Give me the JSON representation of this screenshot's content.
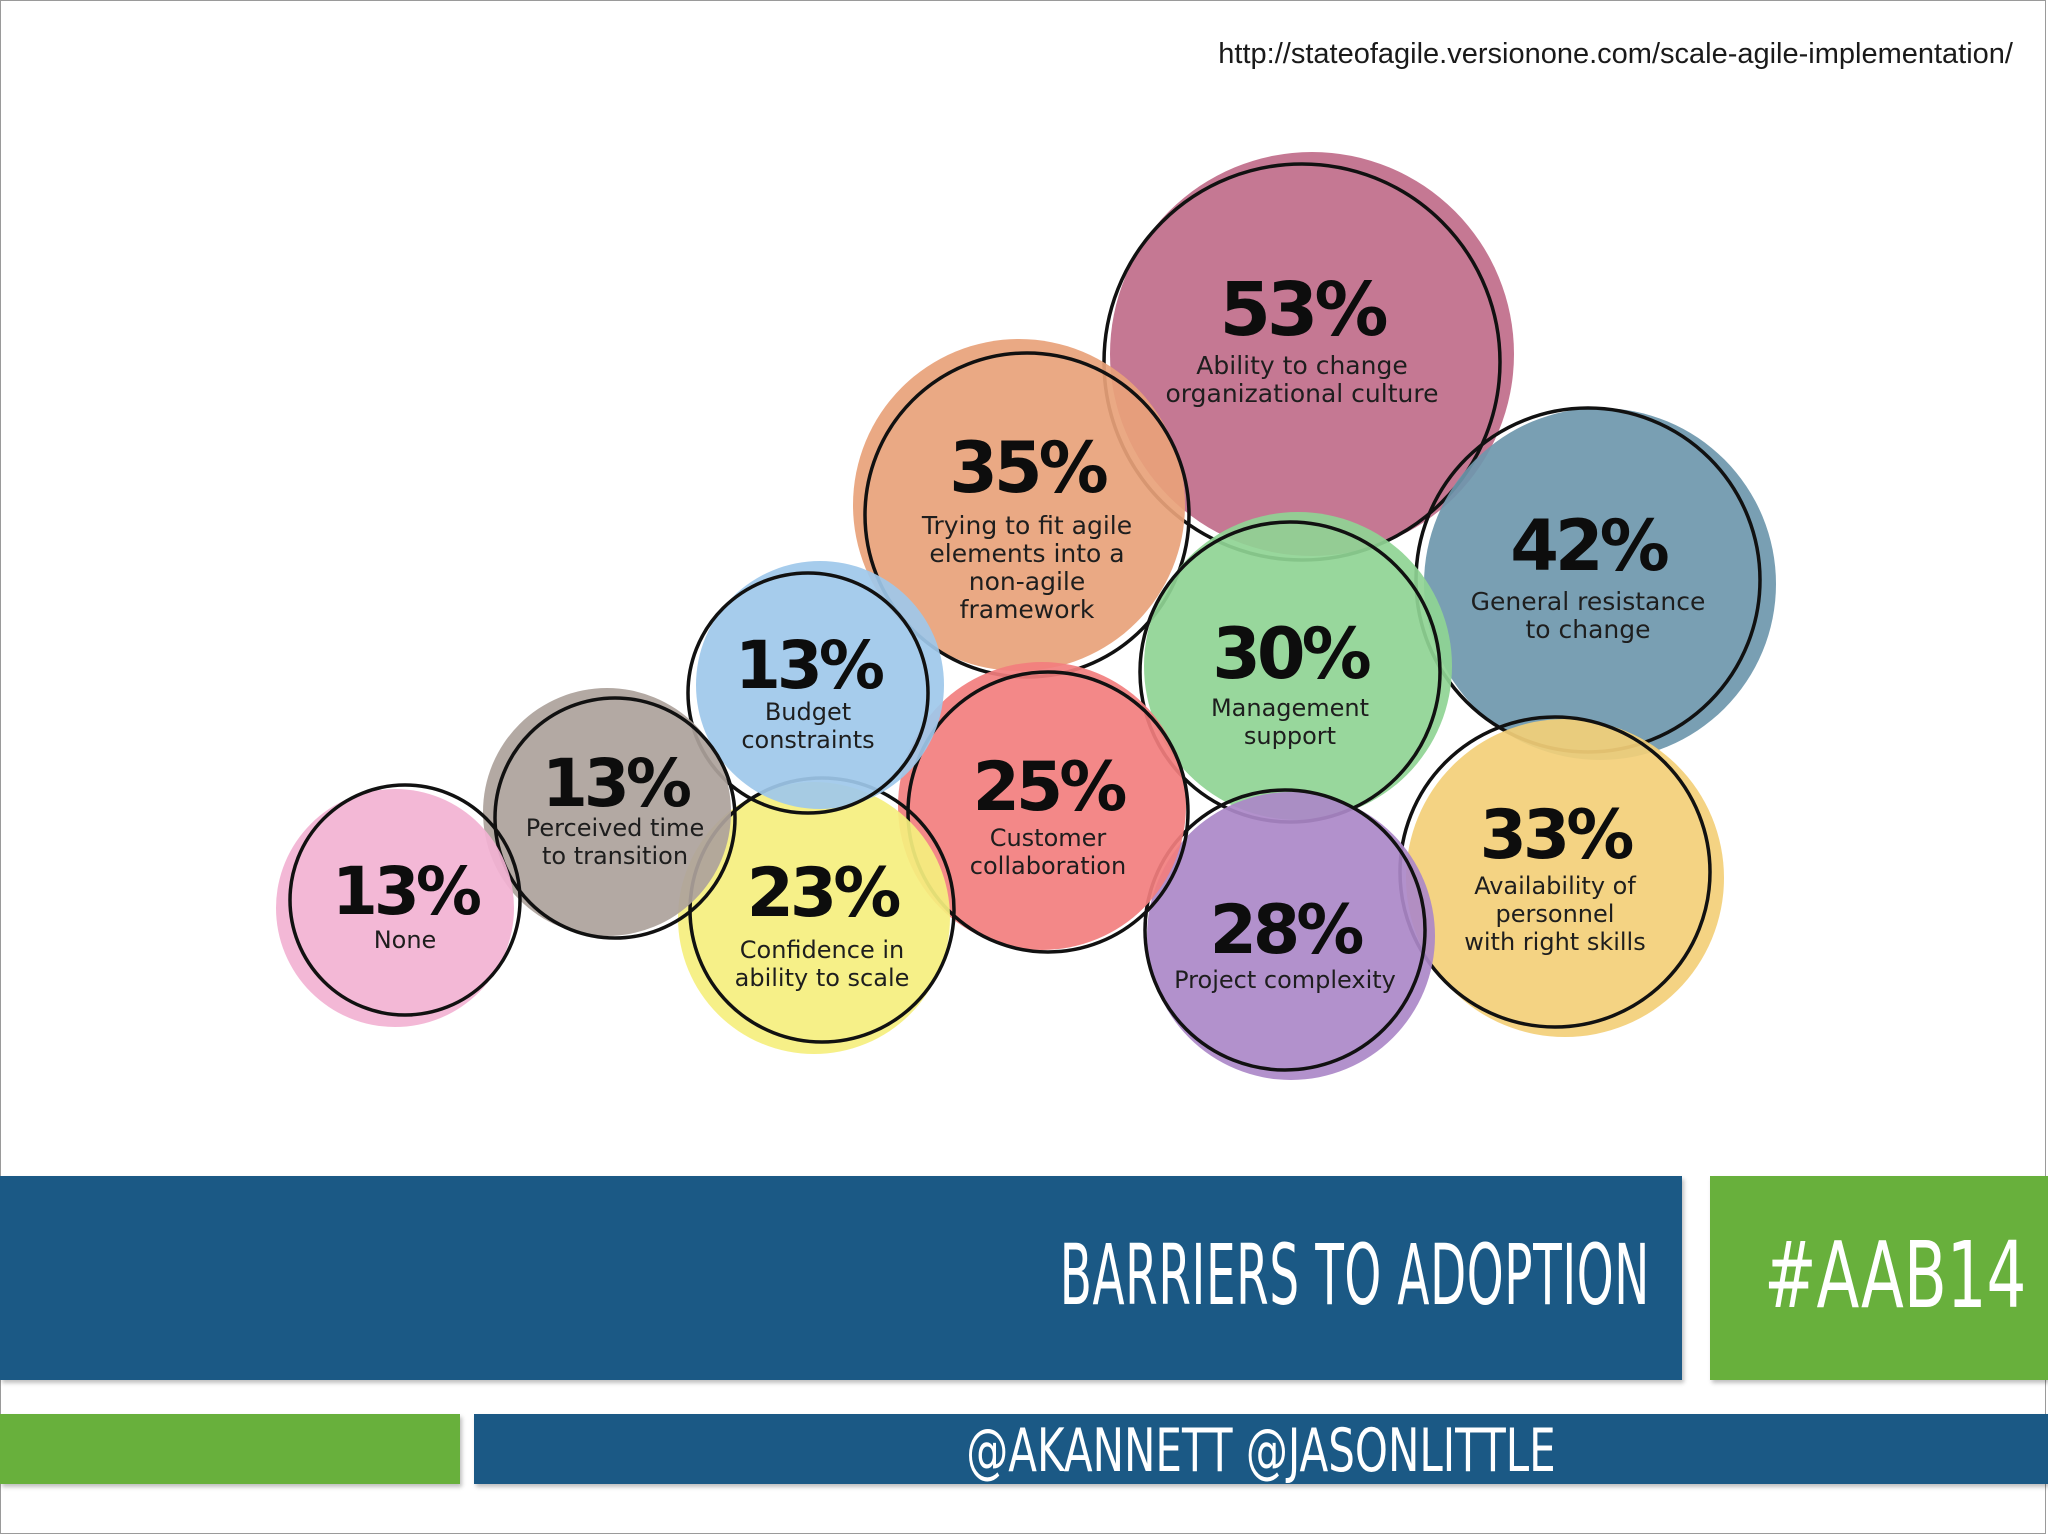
{
  "source_url": "http://stateofagile.versionone.com/scale-agile-implementation/",
  "slide_title": "BARRIERS TO ADOPTION",
  "hashtag": "#AAB14",
  "authors": "@AKANNETT @JASONLITTLE",
  "colors": {
    "title_bar": "#1b5985",
    "accent_green": "#68b03c"
  },
  "chart_data": {
    "type": "bubble",
    "title": "",
    "series": [
      {
        "value": 53,
        "label": "53%",
        "text": [
          "Ability to change",
          "organizational culture"
        ],
        "color": "#c06c8a"
      },
      {
        "value": 42,
        "label": "42%",
        "text": [
          "General resistance",
          "to change"
        ],
        "color": "#6e97ad"
      },
      {
        "value": 35,
        "label": "35%",
        "text": [
          "Trying to fit agile",
          "elements into a",
          "non-agile",
          "framework"
        ],
        "color": "#e8a27a"
      },
      {
        "value": 33,
        "label": "33%",
        "text": [
          "Availability of",
          "personnel",
          "with right skills"
        ],
        "color": "#f3cf78"
      },
      {
        "value": 30,
        "label": "30%",
        "text": [
          "Management",
          "support"
        ],
        "color": "#8fd494"
      },
      {
        "value": 28,
        "label": "28%",
        "text": [
          "Project complexity"
        ],
        "color": "#ab88c8"
      },
      {
        "value": 25,
        "label": "25%",
        "text": [
          "Customer",
          "collaboration"
        ],
        "color": "#f27e7e"
      },
      {
        "value": 23,
        "label": "23%",
        "text": [
          "Confidence in",
          "ability to scale"
        ],
        "color": "#f5ef7e"
      },
      {
        "value": 13,
        "label": "13%",
        "text": [
          "Budget",
          "constraints"
        ],
        "color": "#9ec8ea"
      },
      {
        "value": 13,
        "label": "13%",
        "text": [
          "Perceived time",
          "to transition"
        ],
        "color": "#aca29b"
      },
      {
        "value": 13,
        "label": "13%",
        "text": [
          "None"
        ],
        "color": "#f2b2d2"
      }
    ]
  }
}
